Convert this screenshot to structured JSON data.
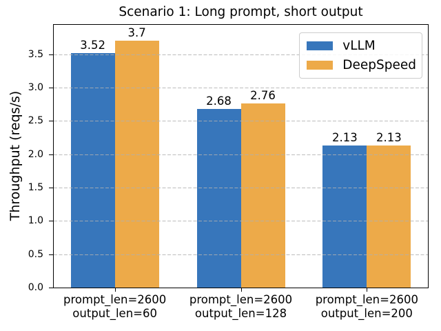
{
  "chart_data": {
    "type": "bar",
    "title": "Scenario 1: Long prompt, short output",
    "xlabel": "",
    "ylabel": "Throughput (reqs/s)",
    "categories": [
      [
        "prompt_len=2600",
        "output_len=60"
      ],
      [
        "prompt_len=2600",
        "output_len=128"
      ],
      [
        "prompt_len=2600",
        "output_len=200"
      ]
    ],
    "series": [
      {
        "name": "vLLM",
        "color": "#3776bb",
        "values": [
          3.52,
          2.68,
          2.13
        ]
      },
      {
        "name": "DeepSpeed",
        "color": "#edaa49",
        "values": [
          3.7,
          2.76,
          2.13
        ]
      }
    ],
    "ylim": [
      0,
      3.94
    ],
    "yticks": [
      0.0,
      0.5,
      1.0,
      1.5,
      2.0,
      2.5,
      3.0,
      3.5
    ],
    "grid": {
      "axis": "y",
      "linestyle": "dashed",
      "color": "#b0b0b0",
      "over_bars": true
    },
    "legend": {
      "position": "upper right"
    },
    "colors": {
      "background": "#ffffff",
      "axis": "#000000",
      "text": "#000000"
    }
  }
}
